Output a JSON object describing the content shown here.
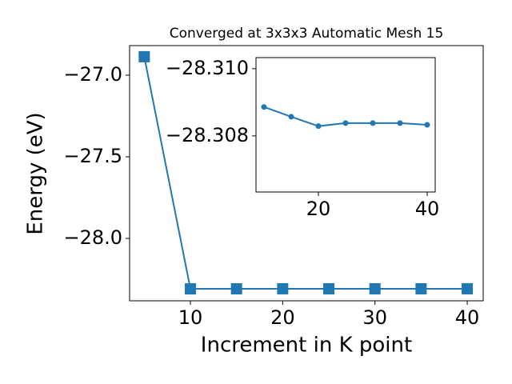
{
  "chart_data": [
    {
      "type": "line",
      "title": "Converged at 3x3x3 Automatic Mesh 15",
      "xlabel": "Increment in K point",
      "ylabel": "Energy (eV)",
      "x": [
        5,
        10,
        15,
        20,
        25,
        30,
        35,
        40
      ],
      "series": [
        {
          "color": "#1f77b4",
          "marker": "square",
          "values": [
            -26.887,
            -28.30886,
            -28.30857,
            -28.30829,
            -28.30838,
            -28.30838,
            -28.30838,
            -28.30833
          ]
        }
      ],
      "xlim": [
        3.41,
        41.73
      ],
      "ylim": [
        -28.382,
        -26.819
      ],
      "xticks": [
        10,
        20,
        30,
        40
      ],
      "yticks": [
        {
          "value": -27.0,
          "label": "−27.0"
        },
        {
          "value": -27.5,
          "label": "−27.5"
        },
        {
          "value": -28.0,
          "label": "−28.0"
        }
      ]
    },
    {
      "type": "line",
      "x": [
        10,
        15,
        20,
        25,
        30,
        35,
        40
      ],
      "series": [
        {
          "color": "#1f77b4",
          "marker": "circle",
          "values": [
            -28.30886,
            -28.30857,
            -28.30829,
            -28.30838,
            -28.30838,
            -28.30838,
            -28.30833
          ]
        }
      ],
      "xlim": [
        8.53,
        41.47
      ],
      "ylim": [
        -28.30633,
        -28.31033
      ],
      "xticks": [
        20,
        40
      ],
      "yticks": [
        {
          "value": -28.31,
          "label": "−28.310"
        },
        {
          "value": -28.308,
          "label": "−28.308"
        }
      ]
    }
  ]
}
